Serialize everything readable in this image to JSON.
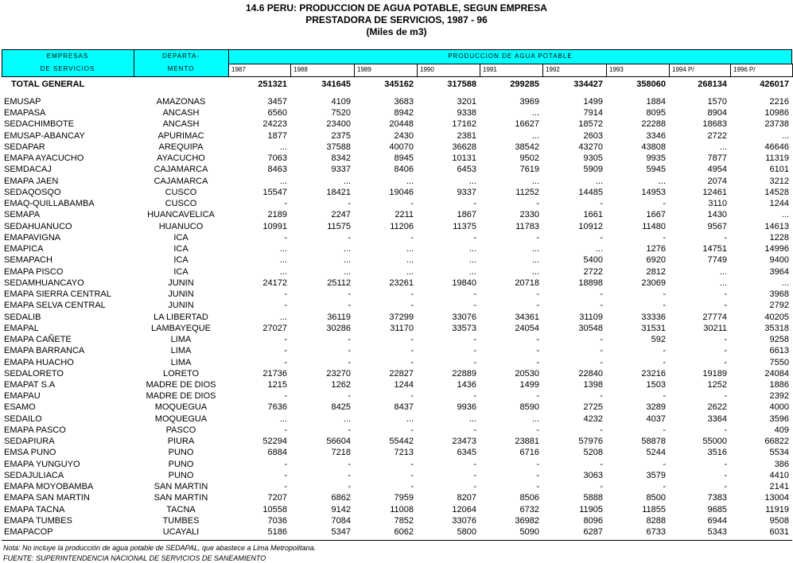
{
  "title": [
    "14.6 PERU: PRODUCCION DE AGUA POTABLE, SEGUN EMPRESA",
    "PRESTADORA DE SERVICIOS, 1987 - 96",
    "(Miles de m3)"
  ],
  "header": {
    "company": [
      "EMPRESAS",
      "DE SERVICIOS"
    ],
    "department": [
      "DEPARTA-",
      "MENTO"
    ],
    "production": "PRODUCCION DE AGUA POTABLE",
    "years": [
      "1987",
      "1988",
      "1989",
      "1990",
      "1991",
      "1992",
      "1993",
      "1994 P/",
      "1996 P/"
    ]
  },
  "total": {
    "label": "TOTAL GENERAL",
    "values": [
      251321,
      341645,
      345162,
      317588,
      299285,
      334427,
      358060,
      268134,
      426017
    ]
  },
  "rows": [
    [
      "EMUSAP",
      "AMAZONAS",
      3457,
      4109,
      3683,
      3201,
      3969,
      1499,
      1884,
      1570,
      2216
    ],
    [
      "EMAPASA",
      "ANCASH",
      6560,
      7520,
      8942,
      9338,
      "...",
      7914,
      8095,
      8904,
      10986
    ],
    [
      "SEDACHIMBOTE",
      "ANCASH",
      24223,
      23400,
      20448,
      17162,
      16627,
      18572,
      22288,
      18683,
      23738
    ],
    [
      "EMUSAP-ABANCAY",
      "APURIMAC",
      1877,
      2375,
      2430,
      2381,
      "...",
      2603,
      3346,
      2722,
      "..."
    ],
    [
      "SEDAPAR",
      "AREQUIPA",
      "...",
      37588,
      40070,
      36628,
      38542,
      43270,
      43808,
      "...",
      46646
    ],
    [
      "EMAPA AYACUCHO",
      "AYACUCHO",
      7063,
      8342,
      8945,
      10131,
      9502,
      9305,
      9935,
      7877,
      11319
    ],
    [
      "SEMDACAJ",
      "CAJAMARCA",
      8463,
      9337,
      8406,
      6453,
      7619,
      5909,
      5945,
      4954,
      6101
    ],
    [
      "EMAPA JAEN",
      "CAJAMARCA",
      "...",
      "...",
      "...",
      "...",
      "...",
      "...",
      "...",
      2074,
      3212
    ],
    [
      "SEDAQOSQO",
      "CUSCO",
      15547,
      18421,
      19046,
      9337,
      11252,
      14485,
      14953,
      12461,
      14528
    ],
    [
      "EMAQ-QUILLABAMBA",
      "CUSCO",
      "-",
      "-",
      "-",
      "-",
      "-",
      "-",
      "-",
      3110,
      1244
    ],
    [
      "SEMAPA",
      "HUANCAVELICA",
      2189,
      2247,
      2211,
      1867,
      2330,
      1661,
      1667,
      1430,
      "..."
    ],
    [
      "SEDAHUANUCO",
      "HUANUCO",
      10991,
      11575,
      11206,
      11375,
      11783,
      10912,
      11480,
      9567,
      14613
    ],
    [
      "EMAPAVIGNA",
      "ICA",
      "-",
      "-",
      "-",
      "-",
      "-",
      "-",
      "-",
      "-",
      1228
    ],
    [
      "EMAPICA",
      "ICA",
      "...",
      "...",
      "...",
      "...",
      "...",
      "...",
      1276,
      14751,
      14996
    ],
    [
      "SEMAPACH",
      "ICA",
      "...",
      "...",
      "...",
      "...",
      "...",
      5400,
      6920,
      7749,
      9400
    ],
    [
      "EMAPA PISCO",
      "ICA",
      "...",
      "...",
      "...",
      "...",
      "...",
      2722,
      2812,
      "...",
      3964
    ],
    [
      "SEDAMHUANCAYO",
      "JUNIN",
      24172,
      25112,
      23261,
      19840,
      20718,
      18898,
      23069,
      "...",
      "..."
    ],
    [
      "EMAPA SIERRA CENTRAL",
      "JUNIN",
      "-",
      "-",
      "-",
      "-",
      "-",
      "-",
      "-",
      "-",
      3968
    ],
    [
      "EMAPA SELVA CENTRAL",
      "JUNIN",
      "-",
      "-",
      "-",
      "-",
      "-",
      "-",
      "-",
      "-",
      2792
    ],
    [
      "SEDALIB",
      "LA LIBERTAD",
      "...",
      36119,
      37299,
      33076,
      34361,
      31109,
      33336,
      27774,
      40205
    ],
    [
      "EMAPAL",
      "LAMBAYEQUE",
      27027,
      30286,
      31170,
      33573,
      24054,
      30548,
      31531,
      30211,
      35318
    ],
    [
      "EMAPA CAÑETE",
      "LIMA",
      "-",
      "-",
      "-",
      "-",
      "-",
      "-",
      592,
      "-",
      9258
    ],
    [
      "EMAPA BARRANCA",
      "LIMA",
      "-",
      "-",
      "-",
      "-",
      "-",
      "-",
      "-",
      "-",
      6613
    ],
    [
      "EMAPA HUACHO",
      "LIMA",
      "-",
      "-",
      "-",
      "-",
      "-",
      "-",
      "-",
      "-",
      7550
    ],
    [
      "SEDALORETO",
      "LORETO",
      21736,
      23270,
      22827,
      22889,
      20530,
      22840,
      23216,
      19189,
      24084
    ],
    [
      "EMAPAT S.A",
      "MADRE DE DIOS",
      1215,
      1262,
      1244,
      1436,
      1499,
      1398,
      1503,
      1252,
      1886
    ],
    [
      "EMAPAU",
      "MADRE DE DIOS",
      "-",
      "-",
      "-",
      "-",
      "-",
      "-",
      "-",
      "-",
      2392
    ],
    [
      "ESAMO",
      "MOQUEGUA",
      7636,
      8425,
      8437,
      9936,
      8590,
      2725,
      3289,
      2622,
      4000
    ],
    [
      "SEDAILO",
      "MOQUEGUA",
      "...",
      "...",
      "...",
      "...",
      "...",
      4232,
      4037,
      3364,
      3596
    ],
    [
      "EMAPA PASCO",
      "PASCO",
      "-",
      "-",
      "-",
      "-",
      "-",
      "-",
      "-",
      "-",
      409
    ],
    [
      "SEDAPIURA",
      "PIURA",
      52294,
      56604,
      55442,
      23473,
      23881,
      57976,
      58878,
      55000,
      66822
    ],
    [
      "EMSA PUNO",
      "PUNO",
      6884,
      7218,
      7213,
      6345,
      6716,
      5208,
      5244,
      3516,
      5534
    ],
    [
      "EMAPA YUNGUYO",
      "PUNO",
      "-",
      "-",
      "-",
      "-",
      "-",
      "-",
      "-",
      "-",
      386
    ],
    [
      "SEDAJULIACA",
      "PUNO",
      "-",
      "-",
      "-",
      "-",
      "-",
      3063,
      3579,
      "-",
      4410
    ],
    [
      "EMAPA MOYOBAMBA",
      "SAN MARTIN",
      "-",
      "-",
      "-",
      "-",
      "-",
      "-",
      "-",
      "-",
      2141
    ],
    [
      "EMAPA SAN MARTIN",
      "SAN MARTIN",
      7207,
      6862,
      7959,
      8207,
      8506,
      5888,
      8500,
      7383,
      13004
    ],
    [
      "EMAPA TACNA",
      "TACNA",
      10558,
      9142,
      11008,
      12064,
      6732,
      11905,
      11855,
      9685,
      11919
    ],
    [
      "EMAPA TUMBES",
      "TUMBES",
      7036,
      7084,
      7852,
      33076,
      36982,
      8096,
      8288,
      6944,
      9508
    ],
    [
      "EMAPACOP",
      "UCAYALI",
      5186,
      5347,
      6062,
      5800,
      5090,
      6287,
      6733,
      5343,
      6031
    ]
  ],
  "notes": [
    "Nota: No incluye la producción de agua potable de SEDAPAL, que abastece a Lima Metropolitana.",
    "FUENTE: SUPERINTENDENCIA NACIONAL DE SERVICIOS DE SANEAMIENTO"
  ]
}
